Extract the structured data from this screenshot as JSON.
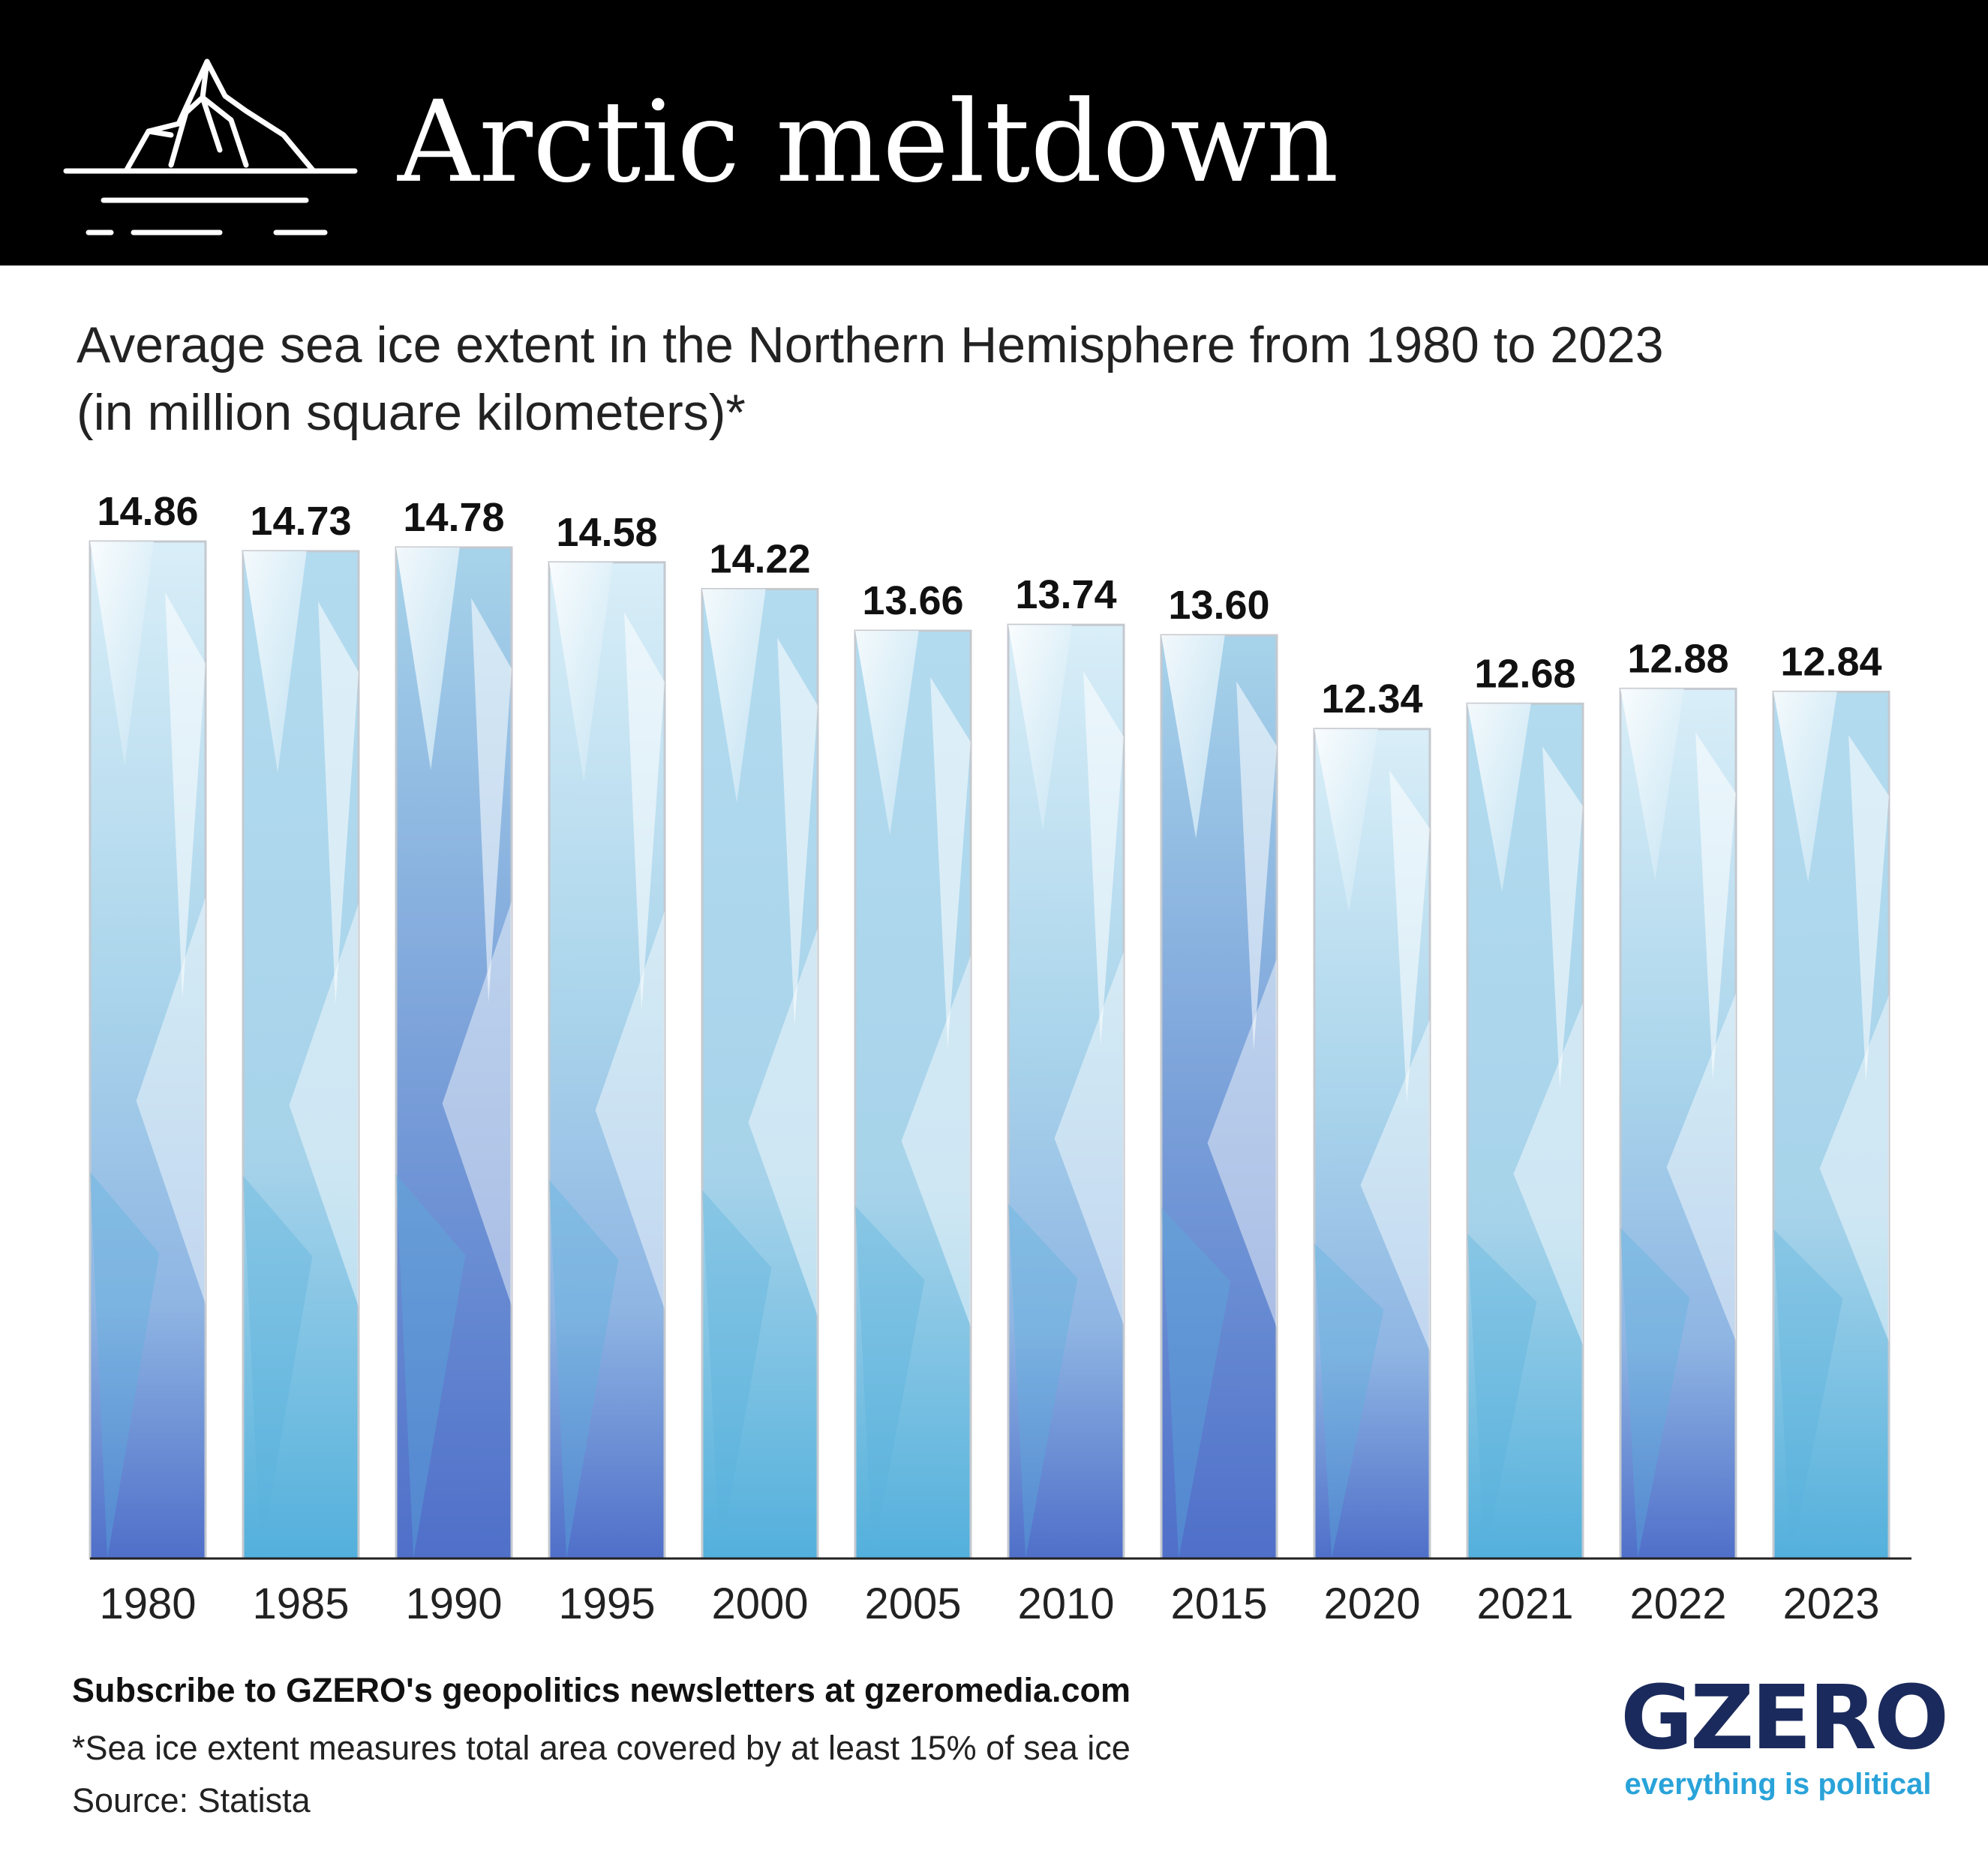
{
  "header": {
    "title": "Arctic meltdown",
    "icon": "iceberg-icon",
    "background": "#000000"
  },
  "subtitle": {
    "line1": "Average sea ice extent in the Northern Hemisphere from 1980 to 2023",
    "line2": "(in million square kilometers)*"
  },
  "chart_data": {
    "type": "bar",
    "categories": [
      "1980",
      "1985",
      "1990",
      "1995",
      "2000",
      "2005",
      "2010",
      "2015",
      "2020",
      "2021",
      "2022",
      "2023"
    ],
    "values": [
      14.86,
      14.73,
      14.78,
      14.58,
      14.22,
      13.66,
      13.74,
      13.6,
      12.34,
      12.68,
      12.88,
      12.84
    ],
    "data_labels": [
      "14.86",
      "14.73",
      "14.78",
      "14.58",
      "14.22",
      "13.66",
      "13.74",
      "13.60",
      "12.34",
      "12.68",
      "12.88",
      "12.84"
    ],
    "title": "",
    "xlabel": "",
    "ylabel": "",
    "ylim": [
      0,
      15
    ],
    "grid": false,
    "legend": "none",
    "colors": {
      "ice_light": "#d6ecf6",
      "ice_mid": "#a7d3ea",
      "ice_cyan": "#59b3dc",
      "ice_deep": "#4f6fc9",
      "outline": "#c4c9cf",
      "baseline": "#222222"
    }
  },
  "footer": {
    "cta": "Subscribe to GZERO's geopolitics newsletters at gzeromedia.com",
    "note": "*Sea ice extent measures total area covered by at least 15% of sea ice",
    "source": "Source: Statista"
  },
  "brand": {
    "name": "GZERO",
    "tagline": "everything is political",
    "name_color": "#1b2a5c",
    "tagline_color": "#29a3d9"
  }
}
